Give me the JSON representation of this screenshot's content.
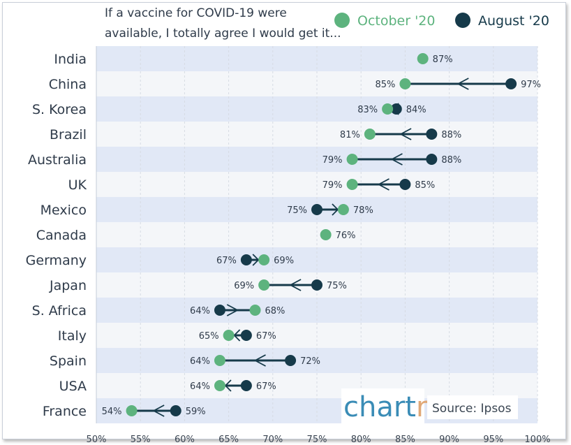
{
  "chart_data": {
    "type": "dumbbell",
    "title_lines": [
      "If a vaccine for COVID-19 were",
      "available, I totally agree I would get it..."
    ],
    "legend": [
      {
        "name": "October '20",
        "color": "#5db37e"
      },
      {
        "name": "August '20",
        "color": "#163a4a"
      }
    ],
    "xlim": [
      50,
      100
    ],
    "x_ticks": [
      "50%",
      "55%",
      "60%",
      "65%",
      "70%",
      "75%",
      "80%",
      "85%",
      "90%",
      "95%",
      "100%"
    ],
    "categories": [
      "India",
      "China",
      "S. Korea",
      "Brazil",
      "Australia",
      "UK",
      "Mexico",
      "Canada",
      "Germany",
      "Japan",
      "S. Africa",
      "Italy",
      "Spain",
      "USA",
      "France"
    ],
    "series": [
      {
        "name": "October '20",
        "values": [
          87,
          85,
          83,
          81,
          79,
          79,
          78,
          76,
          69,
          69,
          68,
          65,
          64,
          64,
          54
        ]
      },
      {
        "name": "August '20",
        "values": [
          null,
          97,
          84,
          88,
          88,
          85,
          75,
          null,
          67,
          75,
          64,
          67,
          72,
          67,
          59
        ]
      }
    ],
    "unit": "%",
    "colors": {
      "october": "#5db37e",
      "august": "#163a4a",
      "line": "#163a4a",
      "band_dark": "#e1e8f6",
      "band_light": "#f4f6f9"
    },
    "brand": {
      "chartr_main": "chart",
      "chartr_accent": "r",
      "accent_color": "#e0a877"
    },
    "source": "Source: Ipsos"
  }
}
